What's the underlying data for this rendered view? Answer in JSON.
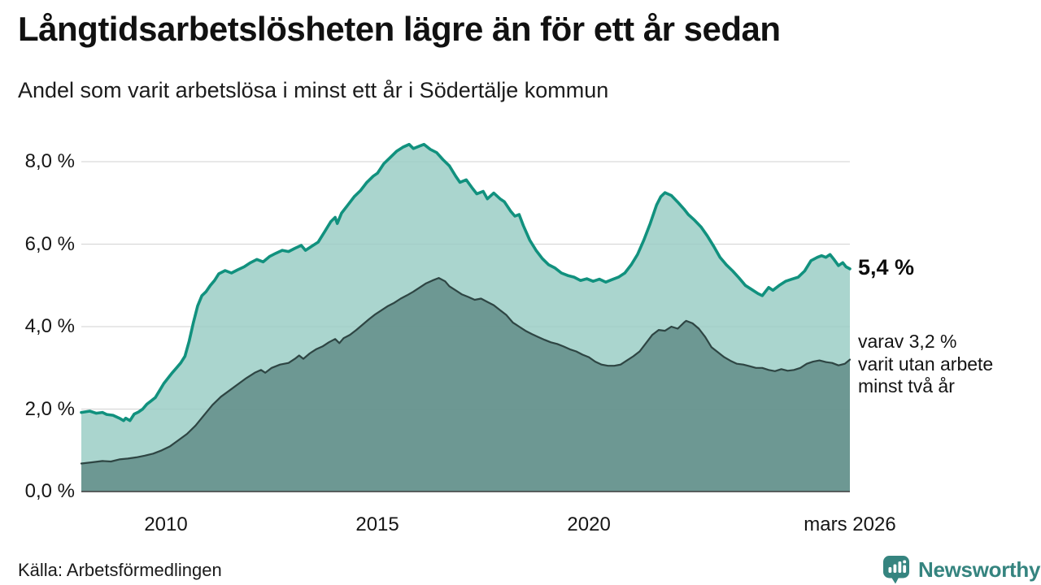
{
  "header": {
    "title": "Långtidsarbetslösheten lägre än för ett år sedan",
    "subtitle": "Andel som varit arbetslösa i minst ett år i Södertälje kommun"
  },
  "annotations": {
    "latest_total": "5,4 %",
    "secondary": "varav 3,2 %\nvarit utan arbete\nminst två år"
  },
  "footer": {
    "source": "Källa: Arbetsförmedlingen",
    "brand": "Newsworthy"
  },
  "colors": {
    "total_line": "#11917e",
    "total_fill": "rgba(151,204,195,0.82)",
    "twoyear_line": "#2e4543",
    "twoyear_fill": "rgba(100,143,139,0.88)",
    "grid": "#d9d9d9",
    "axis": "#3c3c3c",
    "text": "#1a1a1a",
    "brand": "#35847f"
  },
  "chart_data": {
    "type": "area",
    "title": "Långtidsarbetslösheten lägre än för ett år sedan",
    "subtitle": "Andel som varit arbetslösa i minst ett år i Södertälje kommun",
    "unit": "%",
    "x_range": [
      2008.0,
      2026.17
    ],
    "y_range": [
      0,
      8.8
    ],
    "grid": true,
    "legend_position": "end-labels",
    "x_ticks": [
      {
        "t": 2010.0,
        "label": "2010"
      },
      {
        "t": 2015.0,
        "label": "2015"
      },
      {
        "t": 2020.0,
        "label": "2020"
      },
      {
        "t": 2026.17,
        "label": "mars 2026"
      }
    ],
    "y_ticks": [
      {
        "v": 0,
        "label": "0,0 %"
      },
      {
        "v": 2,
        "label": "2,0 %"
      },
      {
        "v": 4,
        "label": "4,0 %"
      },
      {
        "v": 6,
        "label": "6,0 %"
      },
      {
        "v": 8,
        "label": "8,0 %"
      }
    ],
    "series": [
      {
        "name": "Arbetslösa minst ett år",
        "end_label": "5,4 %",
        "end_value": 5.4,
        "line_width": 3.6,
        "points": [
          [
            2008.0,
            1.92
          ],
          [
            2008.2,
            1.95
          ],
          [
            2008.35,
            1.9
          ],
          [
            2008.5,
            1.92
          ],
          [
            2008.6,
            1.87
          ],
          [
            2008.75,
            1.85
          ],
          [
            2008.9,
            1.78
          ],
          [
            2009.0,
            1.72
          ],
          [
            2009.05,
            1.78
          ],
          [
            2009.15,
            1.72
          ],
          [
            2009.25,
            1.88
          ],
          [
            2009.35,
            1.93
          ],
          [
            2009.45,
            2.0
          ],
          [
            2009.55,
            2.12
          ],
          [
            2009.65,
            2.2
          ],
          [
            2009.75,
            2.28
          ],
          [
            2009.85,
            2.45
          ],
          [
            2009.95,
            2.62
          ],
          [
            2010.05,
            2.75
          ],
          [
            2010.15,
            2.88
          ],
          [
            2010.25,
            3.0
          ],
          [
            2010.35,
            3.12
          ],
          [
            2010.45,
            3.28
          ],
          [
            2010.55,
            3.65
          ],
          [
            2010.65,
            4.1
          ],
          [
            2010.75,
            4.5
          ],
          [
            2010.85,
            4.75
          ],
          [
            2010.95,
            4.85
          ],
          [
            2011.05,
            5.0
          ],
          [
            2011.15,
            5.12
          ],
          [
            2011.25,
            5.28
          ],
          [
            2011.4,
            5.36
          ],
          [
            2011.55,
            5.3
          ],
          [
            2011.7,
            5.38
          ],
          [
            2011.85,
            5.45
          ],
          [
            2012.0,
            5.55
          ],
          [
            2012.15,
            5.63
          ],
          [
            2012.3,
            5.57
          ],
          [
            2012.45,
            5.7
          ],
          [
            2012.6,
            5.78
          ],
          [
            2012.75,
            5.85
          ],
          [
            2012.9,
            5.82
          ],
          [
            2013.05,
            5.9
          ],
          [
            2013.2,
            5.97
          ],
          [
            2013.3,
            5.85
          ],
          [
            2013.45,
            5.95
          ],
          [
            2013.6,
            6.05
          ],
          [
            2013.75,
            6.3
          ],
          [
            2013.9,
            6.55
          ],
          [
            2014.0,
            6.65
          ],
          [
            2014.05,
            6.5
          ],
          [
            2014.15,
            6.75
          ],
          [
            2014.3,
            6.95
          ],
          [
            2014.45,
            7.15
          ],
          [
            2014.6,
            7.3
          ],
          [
            2014.75,
            7.5
          ],
          [
            2014.9,
            7.65
          ],
          [
            2015.0,
            7.72
          ],
          [
            2015.15,
            7.95
          ],
          [
            2015.3,
            8.1
          ],
          [
            2015.45,
            8.25
          ],
          [
            2015.6,
            8.35
          ],
          [
            2015.75,
            8.42
          ],
          [
            2015.85,
            8.32
          ],
          [
            2016.0,
            8.38
          ],
          [
            2016.1,
            8.42
          ],
          [
            2016.25,
            8.3
          ],
          [
            2016.4,
            8.22
          ],
          [
            2016.55,
            8.05
          ],
          [
            2016.7,
            7.9
          ],
          [
            2016.85,
            7.65
          ],
          [
            2016.95,
            7.5
          ],
          [
            2017.1,
            7.56
          ],
          [
            2017.25,
            7.35
          ],
          [
            2017.35,
            7.22
          ],
          [
            2017.5,
            7.28
          ],
          [
            2017.6,
            7.1
          ],
          [
            2017.75,
            7.24
          ],
          [
            2017.9,
            7.1
          ],
          [
            2018.0,
            7.03
          ],
          [
            2018.15,
            6.8
          ],
          [
            2018.25,
            6.68
          ],
          [
            2018.35,
            6.72
          ],
          [
            2018.45,
            6.45
          ],
          [
            2018.6,
            6.1
          ],
          [
            2018.75,
            5.85
          ],
          [
            2018.9,
            5.65
          ],
          [
            2019.05,
            5.5
          ],
          [
            2019.2,
            5.42
          ],
          [
            2019.35,
            5.3
          ],
          [
            2019.5,
            5.24
          ],
          [
            2019.65,
            5.2
          ],
          [
            2019.8,
            5.12
          ],
          [
            2019.95,
            5.16
          ],
          [
            2020.1,
            5.1
          ],
          [
            2020.25,
            5.15
          ],
          [
            2020.4,
            5.08
          ],
          [
            2020.55,
            5.14
          ],
          [
            2020.7,
            5.2
          ],
          [
            2020.85,
            5.3
          ],
          [
            2021.0,
            5.5
          ],
          [
            2021.15,
            5.75
          ],
          [
            2021.3,
            6.1
          ],
          [
            2021.45,
            6.5
          ],
          [
            2021.6,
            6.95
          ],
          [
            2021.7,
            7.15
          ],
          [
            2021.8,
            7.25
          ],
          [
            2021.95,
            7.18
          ],
          [
            2022.1,
            7.02
          ],
          [
            2022.25,
            6.85
          ],
          [
            2022.35,
            6.72
          ],
          [
            2022.5,
            6.58
          ],
          [
            2022.65,
            6.42
          ],
          [
            2022.8,
            6.2
          ],
          [
            2022.95,
            5.95
          ],
          [
            2023.1,
            5.68
          ],
          [
            2023.25,
            5.5
          ],
          [
            2023.4,
            5.35
          ],
          [
            2023.55,
            5.18
          ],
          [
            2023.7,
            5.0
          ],
          [
            2023.85,
            4.9
          ],
          [
            2024.0,
            4.8
          ],
          [
            2024.1,
            4.75
          ],
          [
            2024.25,
            4.95
          ],
          [
            2024.35,
            4.88
          ],
          [
            2024.5,
            5.0
          ],
          [
            2024.65,
            5.1
          ],
          [
            2024.8,
            5.15
          ],
          [
            2024.95,
            5.2
          ],
          [
            2025.1,
            5.35
          ],
          [
            2025.25,
            5.6
          ],
          [
            2025.4,
            5.68
          ],
          [
            2025.5,
            5.72
          ],
          [
            2025.6,
            5.68
          ],
          [
            2025.7,
            5.75
          ],
          [
            2025.8,
            5.62
          ],
          [
            2025.9,
            5.48
          ],
          [
            2026.0,
            5.55
          ],
          [
            2026.08,
            5.45
          ],
          [
            2026.17,
            5.4
          ]
        ]
      },
      {
        "name": "varav utan arbete minst två år",
        "end_label": "varav 3,2 % varit utan arbete minst två år",
        "end_value": 3.2,
        "line_width": 2.2,
        "points": [
          [
            2008.0,
            0.68
          ],
          [
            2008.25,
            0.71
          ],
          [
            2008.5,
            0.74
          ],
          [
            2008.7,
            0.73
          ],
          [
            2008.9,
            0.78
          ],
          [
            2009.1,
            0.8
          ],
          [
            2009.3,
            0.83
          ],
          [
            2009.5,
            0.87
          ],
          [
            2009.7,
            0.92
          ],
          [
            2009.9,
            1.0
          ],
          [
            2010.1,
            1.1
          ],
          [
            2010.3,
            1.25
          ],
          [
            2010.5,
            1.4
          ],
          [
            2010.7,
            1.6
          ],
          [
            2010.9,
            1.85
          ],
          [
            2011.1,
            2.1
          ],
          [
            2011.3,
            2.3
          ],
          [
            2011.5,
            2.45
          ],
          [
            2011.7,
            2.6
          ],
          [
            2011.9,
            2.75
          ],
          [
            2012.1,
            2.88
          ],
          [
            2012.25,
            2.95
          ],
          [
            2012.35,
            2.88
          ],
          [
            2012.5,
            3.0
          ],
          [
            2012.7,
            3.08
          ],
          [
            2012.9,
            3.12
          ],
          [
            2013.05,
            3.22
          ],
          [
            2013.15,
            3.3
          ],
          [
            2013.25,
            3.22
          ],
          [
            2013.4,
            3.35
          ],
          [
            2013.55,
            3.45
          ],
          [
            2013.7,
            3.52
          ],
          [
            2013.85,
            3.62
          ],
          [
            2014.0,
            3.7
          ],
          [
            2014.1,
            3.6
          ],
          [
            2014.2,
            3.72
          ],
          [
            2014.35,
            3.8
          ],
          [
            2014.5,
            3.92
          ],
          [
            2014.65,
            4.05
          ],
          [
            2014.8,
            4.18
          ],
          [
            2014.95,
            4.3
          ],
          [
            2015.1,
            4.4
          ],
          [
            2015.25,
            4.5
          ],
          [
            2015.4,
            4.58
          ],
          [
            2015.55,
            4.68
          ],
          [
            2015.7,
            4.76
          ],
          [
            2015.85,
            4.85
          ],
          [
            2016.0,
            4.95
          ],
          [
            2016.15,
            5.05
          ],
          [
            2016.3,
            5.12
          ],
          [
            2016.45,
            5.18
          ],
          [
            2016.6,
            5.1
          ],
          [
            2016.7,
            4.98
          ],
          [
            2016.85,
            4.88
          ],
          [
            2017.0,
            4.78
          ],
          [
            2017.15,
            4.72
          ],
          [
            2017.3,
            4.65
          ],
          [
            2017.45,
            4.68
          ],
          [
            2017.6,
            4.6
          ],
          [
            2017.75,
            4.52
          ],
          [
            2017.9,
            4.4
          ],
          [
            2018.05,
            4.28
          ],
          [
            2018.2,
            4.1
          ],
          [
            2018.35,
            4.0
          ],
          [
            2018.5,
            3.9
          ],
          [
            2018.65,
            3.82
          ],
          [
            2018.8,
            3.75
          ],
          [
            2018.95,
            3.68
          ],
          [
            2019.1,
            3.62
          ],
          [
            2019.25,
            3.58
          ],
          [
            2019.4,
            3.52
          ],
          [
            2019.55,
            3.45
          ],
          [
            2019.7,
            3.4
          ],
          [
            2019.85,
            3.32
          ],
          [
            2020.0,
            3.26
          ],
          [
            2020.15,
            3.15
          ],
          [
            2020.3,
            3.08
          ],
          [
            2020.45,
            3.05
          ],
          [
            2020.6,
            3.05
          ],
          [
            2020.75,
            3.08
          ],
          [
            2020.9,
            3.18
          ],
          [
            2021.05,
            3.28
          ],
          [
            2021.2,
            3.4
          ],
          [
            2021.35,
            3.6
          ],
          [
            2021.5,
            3.8
          ],
          [
            2021.65,
            3.92
          ],
          [
            2021.8,
            3.9
          ],
          [
            2021.95,
            4.0
          ],
          [
            2022.1,
            3.95
          ],
          [
            2022.25,
            4.1
          ],
          [
            2022.3,
            4.14
          ],
          [
            2022.45,
            4.08
          ],
          [
            2022.6,
            3.95
          ],
          [
            2022.75,
            3.75
          ],
          [
            2022.9,
            3.5
          ],
          [
            2023.05,
            3.38
          ],
          [
            2023.2,
            3.26
          ],
          [
            2023.35,
            3.17
          ],
          [
            2023.5,
            3.1
          ],
          [
            2023.65,
            3.08
          ],
          [
            2023.8,
            3.04
          ],
          [
            2023.95,
            3.0
          ],
          [
            2024.1,
            3.0
          ],
          [
            2024.25,
            2.95
          ],
          [
            2024.4,
            2.92
          ],
          [
            2024.55,
            2.97
          ],
          [
            2024.7,
            2.93
          ],
          [
            2024.85,
            2.95
          ],
          [
            2025.0,
            3.0
          ],
          [
            2025.15,
            3.1
          ],
          [
            2025.3,
            3.15
          ],
          [
            2025.45,
            3.18
          ],
          [
            2025.6,
            3.14
          ],
          [
            2025.75,
            3.12
          ],
          [
            2025.9,
            3.06
          ],
          [
            2026.05,
            3.1
          ],
          [
            2026.17,
            3.2
          ]
        ]
      }
    ]
  }
}
